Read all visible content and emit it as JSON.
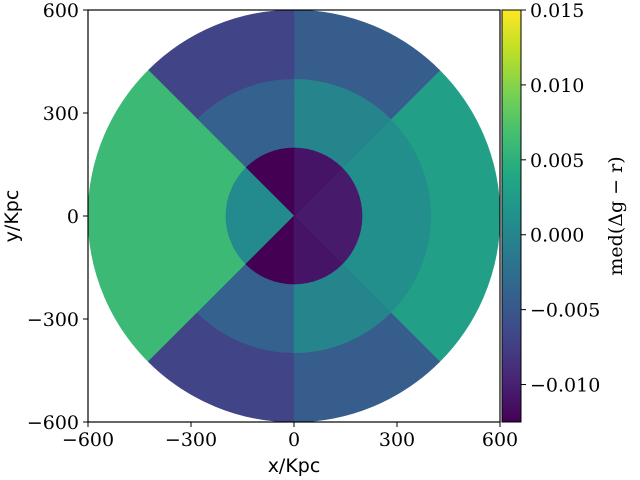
{
  "chart_data": {
    "type": "heatmap",
    "subtype": "polar-binned",
    "xlabel": "x/Kpc",
    "ylabel": "y/Kpc",
    "xlim": [
      -600,
      600
    ],
    "ylim": [
      -600,
      600
    ],
    "xticks": [
      -600,
      -300,
      0,
      300,
      600
    ],
    "yticks": [
      -600,
      -300,
      0,
      300,
      600
    ],
    "xtick_labels": [
      "−600",
      "−300",
      "0",
      "300",
      "600"
    ],
    "ytick_labels": [
      "−600",
      "−300",
      "0",
      "300",
      "600"
    ],
    "colormap": "viridis",
    "grid": false,
    "colorbar": {
      "label": "med(Δg − r)",
      "vmin": -0.0125,
      "vmax": 0.015,
      "ticks": [
        -0.01,
        -0.005,
        0.0,
        0.005,
        0.01,
        0.015
      ],
      "tick_labels": [
        "−0.010",
        "−0.005",
        "0.000",
        "0.005",
        "0.010",
        "0.015"
      ],
      "position": "right"
    },
    "ring_edges_kpc": [
      0,
      200,
      400,
      600
    ],
    "bins": [
      {
        "ring": 0,
        "angle_from_deg": -45,
        "angle_to_deg": 45,
        "value": -0.0105
      },
      {
        "ring": 0,
        "angle_from_deg": 45,
        "angle_to_deg": 90,
        "value": -0.011
      },
      {
        "ring": 0,
        "angle_from_deg": 90,
        "angle_to_deg": 135,
        "value": -0.0125
      },
      {
        "ring": 0,
        "angle_from_deg": 135,
        "angle_to_deg": 225,
        "value": 0.0005
      },
      {
        "ring": 0,
        "angle_from_deg": 225,
        "angle_to_deg": 270,
        "value": -0.0125
      },
      {
        "ring": 0,
        "angle_from_deg": 270,
        "angle_to_deg": 315,
        "value": -0.011
      },
      {
        "ring": 1,
        "angle_from_deg": -45,
        "angle_to_deg": 45,
        "value": 0.001
      },
      {
        "ring": 1,
        "angle_from_deg": 45,
        "angle_to_deg": 90,
        "value": -0.0002
      },
      {
        "ring": 1,
        "angle_from_deg": 90,
        "angle_to_deg": 135,
        "value": -0.004
      },
      {
        "ring": 1,
        "angle_from_deg": 135,
        "angle_to_deg": 225,
        "value": 0.006
      },
      {
        "ring": 1,
        "angle_from_deg": 225,
        "angle_to_deg": 270,
        "value": -0.004
      },
      {
        "ring": 1,
        "angle_from_deg": 270,
        "angle_to_deg": 315,
        "value": -0.0002
      },
      {
        "ring": 2,
        "angle_from_deg": -45,
        "angle_to_deg": 45,
        "value": 0.003
      },
      {
        "ring": 2,
        "angle_from_deg": 45,
        "angle_to_deg": 90,
        "value": -0.0045
      },
      {
        "ring": 2,
        "angle_from_deg": 90,
        "angle_to_deg": 135,
        "value": -0.007
      },
      {
        "ring": 2,
        "angle_from_deg": 135,
        "angle_to_deg": 225,
        "value": 0.006
      },
      {
        "ring": 2,
        "angle_from_deg": 225,
        "angle_to_deg": 270,
        "value": -0.007
      },
      {
        "ring": 2,
        "angle_from_deg": 270,
        "angle_to_deg": 315,
        "value": -0.0045
      }
    ]
  }
}
